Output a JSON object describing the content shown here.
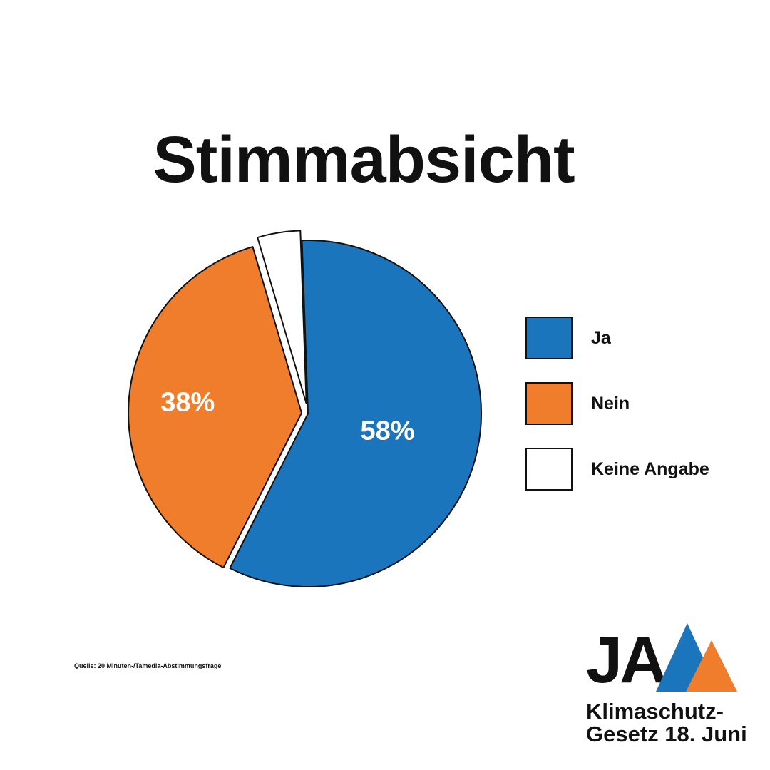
{
  "chart_data": {
    "type": "pie",
    "title": "Stimmabsicht",
    "slices": [
      {
        "label": "Ja",
        "value": 58,
        "display": "58%",
        "color": "#1a75bc"
      },
      {
        "label": "Nein",
        "value": 38,
        "display": "38%",
        "color": "#f07d2c"
      },
      {
        "label": "Keine Angabe",
        "value": 4,
        "display": "",
        "color": "#ffffff"
      }
    ],
    "legend_position": "right"
  },
  "source": "Quelle: 20 Minuten-/Tamedia-Abstimmungsfrage",
  "logo": {
    "mark": "JA",
    "line1": "Klimaschutz-",
    "line2": "Gesetz 18. Juni",
    "colors": {
      "blue": "#1a75bc",
      "orange": "#f07d2c",
      "text": "#111111"
    }
  }
}
